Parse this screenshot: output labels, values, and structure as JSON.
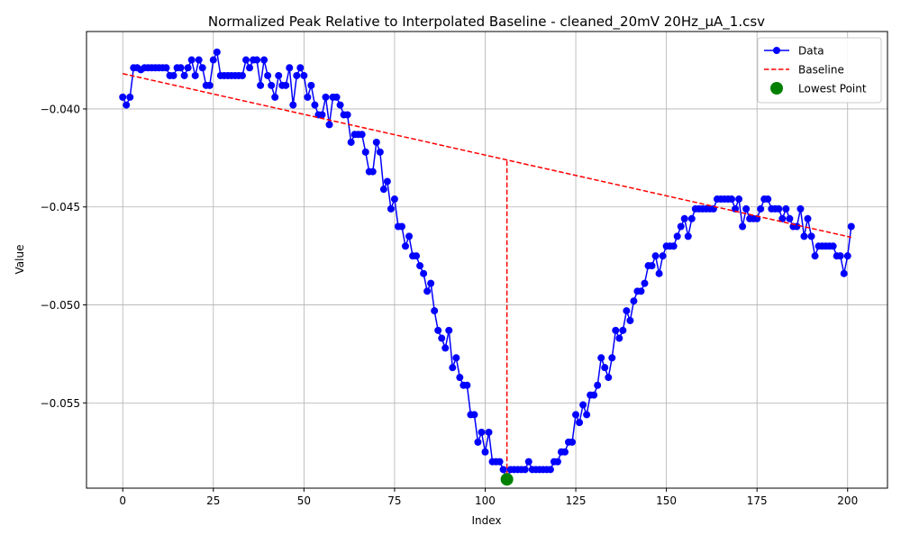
{
  "chart_data": {
    "type": "line",
    "title": "Normalized Peak Relative to Interpolated Baseline - cleaned_20mV 20Hz_µA_1.csv",
    "xlabel": "Index",
    "ylabel": "Value",
    "xlim": [
      -10,
      211
    ],
    "ylim": [
      -0.05935,
      -0.03605
    ],
    "x_ticks": [
      0,
      25,
      50,
      75,
      100,
      125,
      150,
      175,
      200
    ],
    "x_tick_labels": [
      "0",
      "25",
      "50",
      "75",
      "100",
      "125",
      "150",
      "175",
      "200"
    ],
    "y_ticks": [
      -0.055,
      -0.05,
      -0.045,
      -0.04
    ],
    "y_tick_labels": [
      "−0.055",
      "−0.050",
      "−0.045",
      "−0.040"
    ],
    "grid": true,
    "legend_position": "top-right",
    "legend": [
      "Data",
      "Baseline",
      "Lowest Point"
    ],
    "colors": {
      "data": "#0000ff",
      "baseline": "#ff0000",
      "lowest": "#008000",
      "grid": "#b0b0b0"
    },
    "series": [
      {
        "name": "Data",
        "style": "line-markers",
        "y": [
          -0.0394,
          -0.0398,
          -0.0394,
          -0.0379,
          -0.0379,
          -0.038,
          -0.0379,
          -0.0379,
          -0.0379,
          -0.0379,
          -0.0379,
          -0.0379,
          -0.0379,
          -0.0383,
          -0.0383,
          -0.0379,
          -0.0379,
          -0.0383,
          -0.0379,
          -0.0375,
          -0.0383,
          -0.0375,
          -0.0379,
          -0.0388,
          -0.0388,
          -0.0375,
          -0.0371,
          -0.0383,
          -0.0383,
          -0.0383,
          -0.0383,
          -0.0383,
          -0.0383,
          -0.0383,
          -0.0375,
          -0.0379,
          -0.0375,
          -0.0375,
          -0.0388,
          -0.0375,
          -0.0383,
          -0.0388,
          -0.0394,
          -0.0383,
          -0.0388,
          -0.0388,
          -0.0379,
          -0.0398,
          -0.0383,
          -0.0379,
          -0.0383,
          -0.0394,
          -0.0388,
          -0.0398,
          -0.0403,
          -0.0403,
          -0.0394,
          -0.0408,
          -0.0394,
          -0.0394,
          -0.0398,
          -0.0403,
          -0.0403,
          -0.0417,
          -0.0413,
          -0.0413,
          -0.0413,
          -0.0422,
          -0.0432,
          -0.0432,
          -0.0417,
          -0.0422,
          -0.0441,
          -0.0437,
          -0.0451,
          -0.0446,
          -0.046,
          -0.046,
          -0.047,
          -0.0465,
          -0.0475,
          -0.0475,
          -0.048,
          -0.0484,
          -0.0493,
          -0.0489,
          -0.0503,
          -0.0513,
          -0.0517,
          -0.0522,
          -0.0513,
          -0.0532,
          -0.0527,
          -0.0537,
          -0.0541,
          -0.0541,
          -0.0556,
          -0.0556,
          -0.057,
          -0.0565,
          -0.0575,
          -0.0565,
          -0.058,
          -0.058,
          -0.058,
          -0.0584,
          -0.0589,
          -0.0584,
          -0.0584,
          -0.0584,
          -0.0584,
          -0.0584,
          -0.058,
          -0.0584,
          -0.0584,
          -0.0584,
          -0.0584,
          -0.0584,
          -0.0584,
          -0.058,
          -0.058,
          -0.0575,
          -0.0575,
          -0.057,
          -0.057,
          -0.0556,
          -0.056,
          -0.0551,
          -0.0556,
          -0.0546,
          -0.0546,
          -0.0541,
          -0.0527,
          -0.0532,
          -0.0537,
          -0.0527,
          -0.0513,
          -0.0517,
          -0.0513,
          -0.0503,
          -0.0508,
          -0.0498,
          -0.0493,
          -0.0493,
          -0.0489,
          -0.048,
          -0.048,
          -0.0475,
          -0.0484,
          -0.0475,
          -0.047,
          -0.047,
          -0.047,
          -0.0465,
          -0.046,
          -0.0456,
          -0.0465,
          -0.0456,
          -0.0451,
          -0.0451,
          -0.0451,
          -0.0451,
          -0.0451,
          -0.0451,
          -0.0446,
          -0.0446,
          -0.0446,
          -0.0446,
          -0.0446,
          -0.0451,
          -0.0446,
          -0.046,
          -0.0451,
          -0.0456,
          -0.0456,
          -0.0456,
          -0.0451,
          -0.0446,
          -0.0446,
          -0.0451,
          -0.0451,
          -0.0451,
          -0.0456,
          -0.0451,
          -0.0456,
          -0.046,
          -0.046,
          -0.0451,
          -0.0465,
          -0.0456,
          -0.0465,
          -0.0475,
          -0.047,
          -0.047,
          -0.047,
          -0.047,
          -0.047,
          -0.0475,
          -0.0475,
          -0.0484,
          -0.0475,
          -0.046
        ]
      },
      {
        "name": "Baseline",
        "style": "dashed",
        "x": [
          0,
          201
        ],
        "y": [
          -0.0382,
          -0.04655
        ]
      }
    ],
    "baseline_drop": {
      "x": 106,
      "y_top": -0.04265,
      "y_bottom": -0.0589
    },
    "lowest_point": {
      "name": "Lowest Point",
      "x": 106,
      "y": -0.0589
    }
  }
}
